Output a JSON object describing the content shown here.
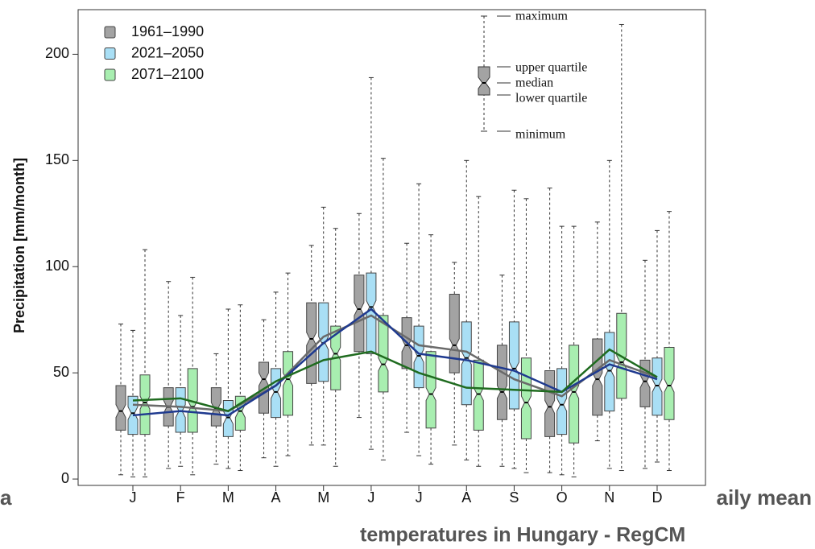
{
  "chart_data": {
    "type": "boxplot",
    "y_label": "Precipitation [mm/month]",
    "categories": [
      "J",
      "F",
      "M",
      "A",
      "M",
      "J",
      "J",
      "A",
      "S",
      "O",
      "N",
      "D"
    ],
    "ylim": [
      -3,
      221
    ],
    "yticks": [
      0,
      50,
      100,
      150,
      200
    ],
    "legend": "upper left",
    "key_labels": {
      "max": "maximum",
      "q3": "upper quartile",
      "median": "median",
      "q1": "lower quartile",
      "min": "minimum"
    },
    "series": [
      {
        "name": "1961–1990",
        "color": "#a3a3a3",
        "line_color": "#6a6a6a",
        "min": [
          2,
          5,
          7,
          10,
          16,
          29,
          22,
          16,
          6,
          3,
          18,
          5
        ],
        "q1": [
          23,
          25,
          25,
          31,
          45,
          60,
          52,
          50,
          28,
          20,
          30,
          34
        ],
        "median": [
          32,
          34,
          33,
          47,
          66,
          80,
          63,
          63,
          41,
          34,
          47,
          46
        ],
        "q3": [
          44,
          43,
          43,
          55,
          83,
          96,
          76,
          87,
          63,
          51,
          66,
          56
        ],
        "max": [
          73,
          93,
          59,
          75,
          110,
          125,
          111,
          102,
          96,
          137,
          121,
          103
        ],
        "means": [
          35,
          34,
          32,
          44,
          67,
          77,
          63,
          60,
          47,
          39,
          56,
          48
        ]
      },
      {
        "name": "2021–2050",
        "color": "#a9dff5",
        "line_color": "#1f3a8f",
        "min": [
          1,
          6,
          5,
          6,
          16,
          14,
          11,
          9,
          5,
          2,
          5,
          8
        ],
        "q1": [
          21,
          22,
          20,
          29,
          46,
          59,
          43,
          35,
          33,
          21,
          32,
          30
        ],
        "median": [
          31,
          32,
          29,
          41,
          64,
          81,
          58,
          57,
          52,
          35,
          51,
          44
        ],
        "q3": [
          39,
          43,
          37,
          52,
          83,
          97,
          72,
          74,
          74,
          52,
          69,
          57
        ],
        "max": [
          70,
          77,
          80,
          88,
          128,
          189,
          139,
          150,
          136,
          119,
          150,
          117
        ],
        "means": [
          30,
          32,
          30,
          44,
          64,
          80,
          59,
          56,
          51,
          41,
          54,
          47
        ]
      },
      {
        "name": "2071–2100",
        "color": "#a8eeb0",
        "line_color": "#1f6b1f",
        "min": [
          1,
          2,
          4,
          11,
          6,
          9,
          7,
          6,
          3,
          1,
          4,
          4
        ],
        "q1": [
          21,
          22,
          23,
          30,
          42,
          41,
          24,
          23,
          19,
          17,
          38,
          28
        ],
        "median": [
          36,
          34,
          32,
          47,
          59,
          54,
          40,
          40,
          36,
          41,
          55,
          44
        ],
        "q3": [
          49,
          52,
          39,
          60,
          72,
          77,
          60,
          56,
          57,
          63,
          78,
          62
        ],
        "max": [
          108,
          95,
          82,
          97,
          118,
          151,
          115,
          133,
          132,
          119,
          214,
          126
        ],
        "means": [
          37,
          38,
          32,
          46,
          56,
          60,
          50,
          43,
          42,
          41,
          61,
          48
        ]
      }
    ]
  },
  "slide_text": {
    "left": "a",
    "right": "aily mean",
    "bottom": "temperatures in Hungary - RegCM"
  }
}
